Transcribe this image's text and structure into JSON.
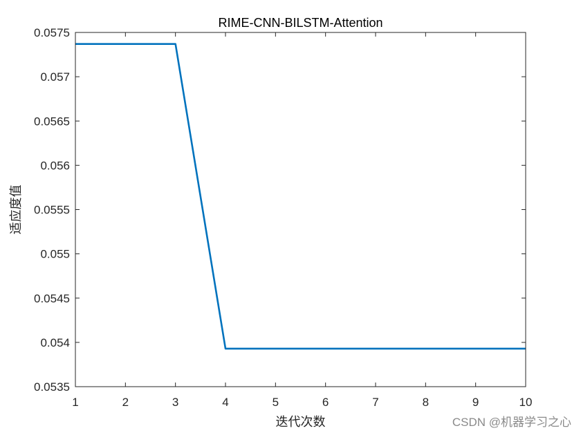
{
  "chart_data": {
    "type": "line",
    "title": "RIME-CNN-BILSTM-Attention",
    "xlabel": "迭代次数",
    "ylabel": "适应度值",
    "xlim": [
      1,
      10
    ],
    "ylim": [
      0.0535,
      0.0575
    ],
    "xticks": [
      1,
      2,
      3,
      4,
      5,
      6,
      7,
      8,
      9,
      10
    ],
    "xtick_labels": [
      "1",
      "2",
      "3",
      "4",
      "5",
      "6",
      "7",
      "8",
      "9",
      "10"
    ],
    "yticks": [
      0.0535,
      0.054,
      0.0545,
      0.055,
      0.0555,
      0.056,
      0.0565,
      0.057,
      0.0575
    ],
    "ytick_labels": [
      "0.0535",
      "0.054",
      "0.0545",
      "0.055",
      "0.0555",
      "0.056",
      "0.0565",
      "0.057",
      "0.0575"
    ],
    "grid": false,
    "series": [
      {
        "color": "#0072BD",
        "x": [
          1,
          2,
          3,
          4,
          5,
          6,
          7,
          8,
          9,
          10
        ],
        "y": [
          0.05737,
          0.05737,
          0.05737,
          0.05393,
          0.05393,
          0.05393,
          0.05393,
          0.05393,
          0.05393,
          0.05393
        ]
      }
    ]
  },
  "watermark": "CSDN @机器学习之心"
}
